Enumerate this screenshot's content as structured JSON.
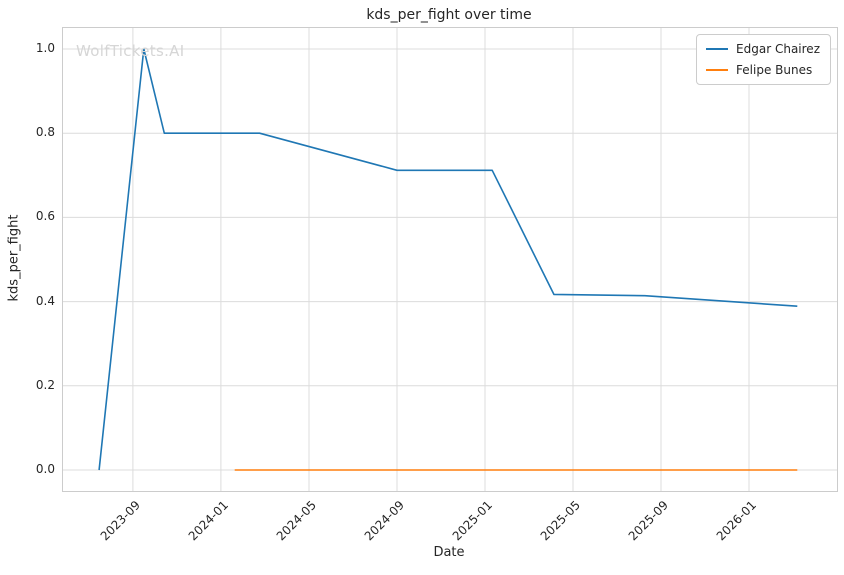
{
  "watermark": "WolfTickets.AI",
  "chart_data": {
    "type": "line",
    "title": "kds_per_fight over time",
    "xlabel": "Date",
    "ylabel": "kds_per_fight",
    "grid": true,
    "legend_position": "upper right",
    "xlim": [
      "2023-05-26",
      "2026-05-01"
    ],
    "ylim": [
      -0.05,
      1.05
    ],
    "colors": {
      "grid": "#dcdcdc",
      "spine": "#cccccc",
      "text": "#262626",
      "watermark": "#d6d6d6",
      "background": "#ffffff"
    },
    "x_ticks": [
      {
        "date": "2023-09-01",
        "label": "2023-09"
      },
      {
        "date": "2024-01-01",
        "label": "2024-01"
      },
      {
        "date": "2024-05-01",
        "label": "2024-05"
      },
      {
        "date": "2024-09-01",
        "label": "2024-09"
      },
      {
        "date": "2025-01-01",
        "label": "2025-01"
      },
      {
        "date": "2025-05-01",
        "label": "2025-05"
      },
      {
        "date": "2025-09-01",
        "label": "2025-09"
      },
      {
        "date": "2026-01-01",
        "label": "2026-01"
      }
    ],
    "y_ticks": [
      0.0,
      0.2,
      0.4,
      0.6,
      0.8,
      1.0
    ],
    "series": [
      {
        "name": "Edgar Chairez",
        "color": "#1f77b4",
        "points": [
          {
            "date": "2023-07-15",
            "value": 0.0
          },
          {
            "date": "2023-09-16",
            "value": 1.0
          },
          {
            "date": "2023-10-14",
            "value": 0.8
          },
          {
            "date": "2024-02-24",
            "value": 0.8
          },
          {
            "date": "2024-09-01",
            "value": 0.712
          },
          {
            "date": "2025-01-11",
            "value": 0.712
          },
          {
            "date": "2025-04-05",
            "value": 0.417
          },
          {
            "date": "2025-08-09",
            "value": 0.414
          },
          {
            "date": "2026-03-07",
            "value": 0.389
          }
        ]
      },
      {
        "name": "Felipe Bunes",
        "color": "#ff7f0e",
        "points": [
          {
            "date": "2024-01-20",
            "value": 0.0
          },
          {
            "date": "2026-03-07",
            "value": 0.0
          }
        ]
      }
    ]
  }
}
